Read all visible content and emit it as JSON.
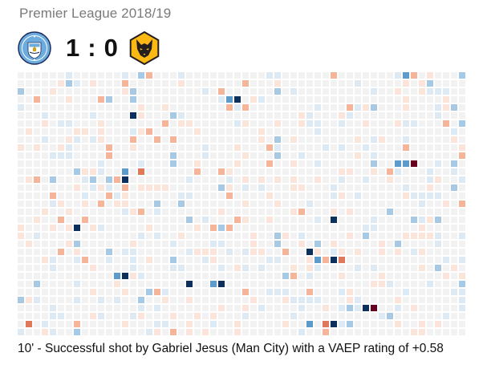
{
  "header": {
    "league": "Premier League 2018/19",
    "home_score": "1",
    "separator": ":",
    "away_score": "0"
  },
  "teams": {
    "home": {
      "crest_icon": "man-city-crest-icon",
      "color": "#6cabdd"
    },
    "away": {
      "crest_icon": "wolves-crest-icon",
      "color": "#fdb913"
    }
  },
  "grid": {
    "columns": 56,
    "rows": 33,
    "colors": {
      "neutral": "#f2f2f2",
      "pos_low": "#dde9f3",
      "pos_mid": "#a8c9e4",
      "pos_high": "#5d9cca",
      "pos_max": "#0c2f5c",
      "neg_low": "#fbe4d9",
      "neg_mid": "#f4b59a",
      "neg_high": "#e0785c",
      "neg_max": "#67001f"
    },
    "highlight_actions": [
      {
        "row": 0,
        "col": 48,
        "level": "pos_high"
      },
      {
        "row": 0,
        "col": 49,
        "level": "neg_mid"
      },
      {
        "row": 3,
        "col": 26,
        "level": "pos_high"
      },
      {
        "row": 3,
        "col": 27,
        "level": "pos_max"
      },
      {
        "row": 5,
        "col": 14,
        "level": "pos_max"
      },
      {
        "row": 9,
        "col": 11,
        "level": "neg_mid"
      },
      {
        "row": 10,
        "col": 32,
        "level": "pos_mid"
      },
      {
        "row": 11,
        "col": 48,
        "level": "pos_high"
      },
      {
        "row": 11,
        "col": 47,
        "level": "pos_high"
      },
      {
        "row": 11,
        "col": 49,
        "level": "neg_max"
      },
      {
        "row": 11,
        "col": 44,
        "level": "pos_mid"
      },
      {
        "row": 12,
        "col": 13,
        "level": "pos_high"
      },
      {
        "row": 12,
        "col": 15,
        "level": "neg_high"
      },
      {
        "row": 13,
        "col": 11,
        "level": "pos_mid"
      },
      {
        "row": 13,
        "col": 12,
        "level": "neg_mid"
      },
      {
        "row": 13,
        "col": 13,
        "level": "pos_max"
      },
      {
        "row": 16,
        "col": 20,
        "level": "pos_mid"
      },
      {
        "row": 18,
        "col": 39,
        "level": "pos_max"
      },
      {
        "row": 19,
        "col": 7,
        "level": "pos_max"
      },
      {
        "row": 21,
        "col": 32,
        "level": "pos_mid"
      },
      {
        "row": 22,
        "col": 36,
        "level": "pos_max"
      },
      {
        "row": 23,
        "col": 37,
        "level": "pos_high"
      },
      {
        "row": 23,
        "col": 38,
        "level": "neg_mid"
      },
      {
        "row": 23,
        "col": 39,
        "level": "pos_max"
      },
      {
        "row": 23,
        "col": 40,
        "level": "neg_high"
      },
      {
        "row": 25,
        "col": 12,
        "level": "pos_high"
      },
      {
        "row": 25,
        "col": 13,
        "level": "pos_max"
      },
      {
        "row": 26,
        "col": 21,
        "level": "pos_max"
      },
      {
        "row": 26,
        "col": 24,
        "level": "pos_high"
      },
      {
        "row": 26,
        "col": 25,
        "level": "pos_max"
      },
      {
        "row": 29,
        "col": 43,
        "level": "pos_max"
      },
      {
        "row": 29,
        "col": 44,
        "level": "neg_max"
      },
      {
        "row": 31,
        "col": 1,
        "level": "neg_high"
      },
      {
        "row": 31,
        "col": 36,
        "level": "pos_high"
      },
      {
        "row": 31,
        "col": 38,
        "level": "neg_high"
      },
      {
        "row": 31,
        "col": 39,
        "level": "pos_max"
      },
      {
        "row": 31,
        "col": 7,
        "level": "neg_mid"
      }
    ]
  },
  "caption": "10' - Successful shot by Gabriel Jesus (Man City) with a VAEP rating of +0.58"
}
